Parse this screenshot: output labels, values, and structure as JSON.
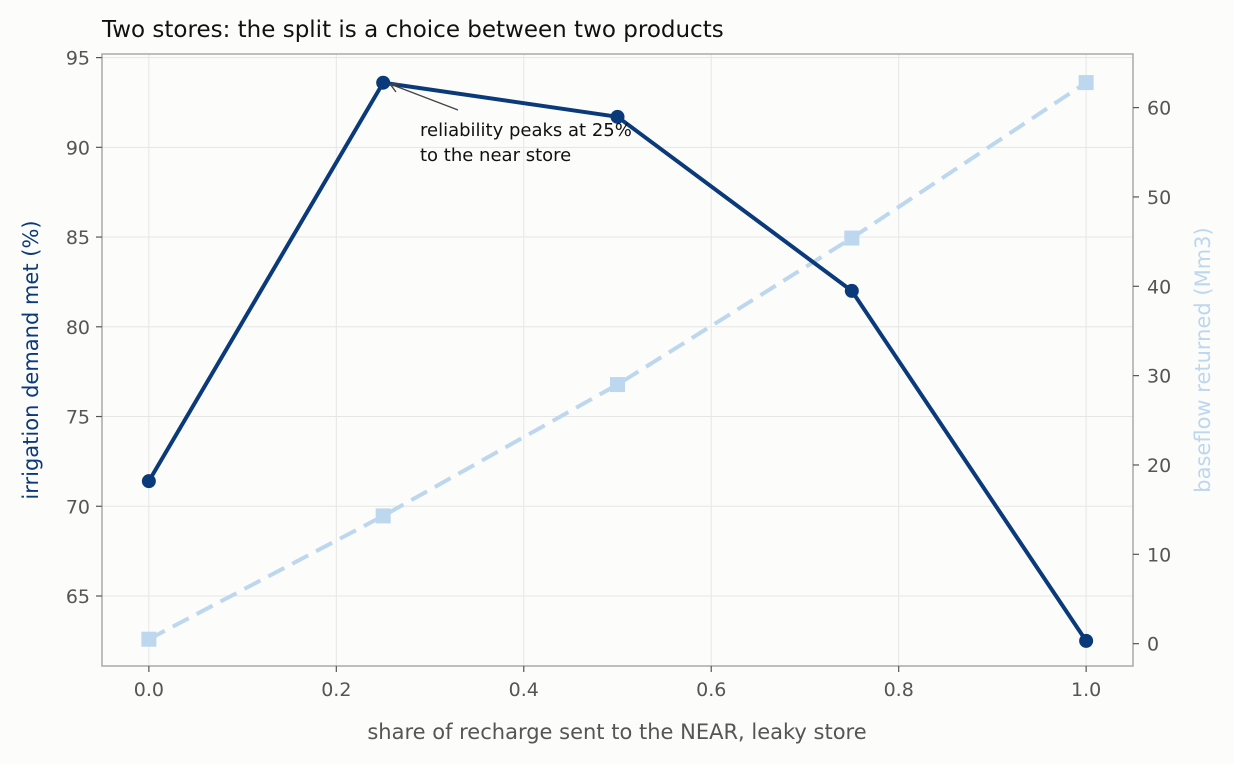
{
  "chart_data": {
    "type": "line",
    "title": "Two stores: the split is a choice between two products",
    "xlabel": "share of recharge sent to the NEAR, leaky store",
    "ylabel_left": "irrigation demand met (%)",
    "ylabel_right": "baseflow returned (Mm3)",
    "x": [
      0.0,
      0.25,
      0.5,
      0.75,
      1.0
    ],
    "xlim": [
      -0.05,
      1.05
    ],
    "ylim_left": [
      61.1,
      95.2
    ],
    "ylim_right": [
      -2.5,
      66.0
    ],
    "x_ticks": [
      "0.0",
      "0.2",
      "0.4",
      "0.6",
      "0.8",
      "1.0"
    ],
    "y_ticks_left": [
      "65",
      "70",
      "75",
      "80",
      "85",
      "90",
      "95"
    ],
    "y_ticks_right": [
      "0",
      "10",
      "20",
      "30",
      "40",
      "50",
      "60"
    ],
    "grid": true,
    "series": [
      {
        "axis": "left",
        "values": [
          71.4,
          93.6,
          91.7,
          82.0,
          62.5
        ],
        "color": "#0b3a7a",
        "marker": "circle",
        "line": "solid"
      },
      {
        "axis": "right",
        "values": [
          0.5,
          14.3,
          29.0,
          45.4,
          62.8
        ],
        "color": "#bdd7ee",
        "marker": "square",
        "line": "dashed"
      }
    ],
    "annotation": {
      "lines": [
        "reliability peaks at 25%",
        "to the near store"
      ],
      "points_to": {
        "x": 0.25,
        "y": 93.6
      }
    }
  },
  "colors": {
    "left_axis_label": "#0b3a7a",
    "right_axis_label": "#bdd7ee",
    "axes_frame": "#aaaaaa",
    "grid": "#e6e6e6"
  }
}
